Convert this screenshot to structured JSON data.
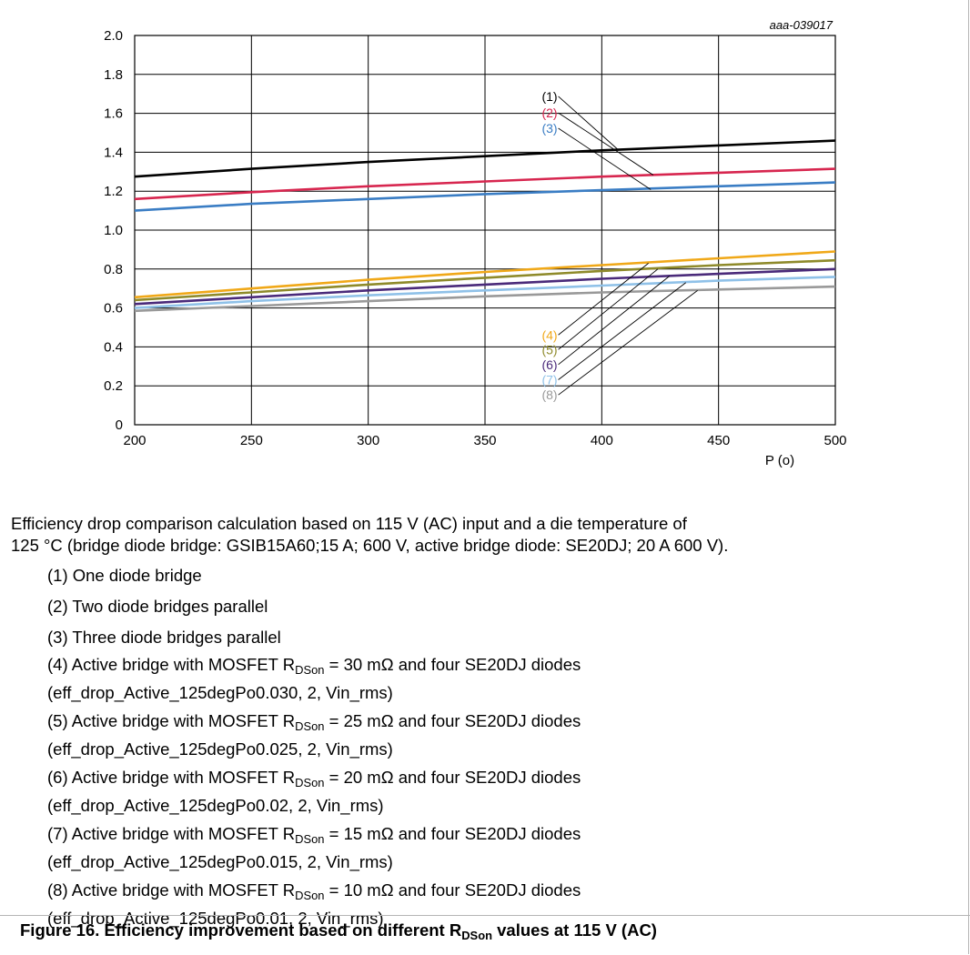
{
  "chart_data": {
    "type": "line",
    "figure_id": "aaa-039017",
    "xlabel": "P (o)",
    "ylabel": "",
    "xlim": [
      200,
      500
    ],
    "ylim": [
      0,
      2.0
    ],
    "x_ticks": [
      "200",
      "250",
      "300",
      "350",
      "400",
      "450",
      "500"
    ],
    "y_ticks": [
      "0",
      "0.2",
      "0.4",
      "0.6",
      "0.8",
      "1.0",
      "1.2",
      "1.4",
      "1.6",
      "1.8",
      "2.0"
    ],
    "x_tick_values": [
      200,
      250,
      300,
      350,
      400,
      450,
      500
    ],
    "y_tick_values": [
      0,
      0.2,
      0.4,
      0.6,
      0.8,
      1.0,
      1.2,
      1.4,
      1.6,
      1.8,
      2.0
    ],
    "grid": true,
    "series": [
      {
        "name": "(1)",
        "color": "#000000",
        "x": [
          200,
          250,
          300,
          350,
          400,
          450,
          500
        ],
        "y": [
          1.275,
          1.315,
          1.35,
          1.38,
          1.41,
          1.435,
          1.46
        ]
      },
      {
        "name": "(2)",
        "color": "#d7264f",
        "x": [
          200,
          250,
          300,
          350,
          400,
          450,
          500
        ],
        "y": [
          1.16,
          1.195,
          1.225,
          1.25,
          1.275,
          1.295,
          1.315
        ]
      },
      {
        "name": "(3)",
        "color": "#3a7dc4",
        "x": [
          200,
          250,
          300,
          350,
          400,
          450,
          500
        ],
        "y": [
          1.1,
          1.135,
          1.16,
          1.185,
          1.205,
          1.225,
          1.245
        ]
      },
      {
        "name": "(4)",
        "color": "#f0a818",
        "x": [
          200,
          250,
          300,
          350,
          400,
          450,
          500
        ],
        "y": [
          0.655,
          0.7,
          0.745,
          0.785,
          0.82,
          0.855,
          0.89
        ]
      },
      {
        "name": "(5)",
        "color": "#8e8a2a",
        "x": [
          200,
          250,
          300,
          350,
          400,
          450,
          500
        ],
        "y": [
          0.64,
          0.68,
          0.72,
          0.755,
          0.79,
          0.82,
          0.845
        ]
      },
      {
        "name": "(6)",
        "color": "#4a2a7a",
        "x": [
          200,
          250,
          300,
          350,
          400,
          450,
          500
        ],
        "y": [
          0.62,
          0.655,
          0.69,
          0.72,
          0.75,
          0.775,
          0.8
        ]
      },
      {
        "name": "(7)",
        "color": "#8fc1e8",
        "x": [
          200,
          250,
          300,
          350,
          400,
          450,
          500
        ],
        "y": [
          0.6,
          0.635,
          0.665,
          0.69,
          0.715,
          0.74,
          0.76
        ]
      },
      {
        "name": "(8)",
        "color": "#999999",
        "x": [
          200,
          250,
          300,
          350,
          400,
          450,
          500
        ],
        "y": [
          0.585,
          0.61,
          0.635,
          0.66,
          0.68,
          0.695,
          0.71
        ]
      }
    ],
    "labels": [
      {
        "text": "(1)",
        "color": "#000000",
        "at": [
          381,
          1.664
        ],
        "ref": [
          407,
          1.413
        ]
      },
      {
        "text": "(2)",
        "color": "#d7264f",
        "at": [
          381,
          1.579
        ],
        "ref": [
          422,
          1.283
        ]
      },
      {
        "text": "(3)",
        "color": "#3a7dc4",
        "at": [
          381,
          1.5
        ],
        "ref": [
          421,
          1.208
        ]
      },
      {
        "text": "(4)",
        "color": "#f0a818",
        "at": [
          381,
          0.438
        ],
        "ref": [
          420,
          0.83
        ]
      },
      {
        "text": "(5)",
        "color": "#8e8a2a",
        "at": [
          381,
          0.363
        ],
        "ref": [
          424,
          0.8
        ]
      },
      {
        "text": "(6)",
        "color": "#4a2a7a",
        "at": [
          381,
          0.286
        ],
        "ref": [
          429,
          0.764
        ]
      },
      {
        "text": "(7)",
        "color": "#8fc1e8",
        "at": [
          381,
          0.208
        ],
        "ref": [
          436,
          0.73
        ]
      },
      {
        "text": "(8)",
        "color": "#999999",
        "at": [
          381,
          0.13
        ],
        "ref": [
          441,
          0.69
        ]
      }
    ]
  },
  "description": {
    "line1": "Efficiency drop comparison calculation based on 115 V (AC) input and a die temperature of",
    "line2": "125 °C (bridge diode bridge: GSIB15A60;15 A; 600 V, active bridge diode: SE20DJ; 20 A 600 V)."
  },
  "notes": {
    "n1": "(1) One diode bridge",
    "n2": "(2) Two diode bridges parallel",
    "n3": "(3) Three diode bridges parallel",
    "mosfet_prefix": "Active bridge with MOSFET R",
    "rds_sub": "DSon",
    "diodes_suffix": "and four SE20DJ diodes",
    "n4_num": "(4)",
    "n4_val": "= 30 mΩ",
    "n4_ref": "(eff_drop_Active_125degPo0.030, 2, Vin_rms)",
    "n5_num": "(5)",
    "n5_val": "= 25 mΩ",
    "n5_ref": "(eff_drop_Active_125degPo0.025, 2, Vin_rms)",
    "n6_num": "(6)",
    "n6_val": "= 20 mΩ",
    "n6_ref": "(eff_drop_Active_125degPo0.02, 2, Vin_rms)",
    "n7_num": "(7)",
    "n7_val": "= 15 mΩ",
    "n7_ref": "(eff_drop_Active_125degPo0.015, 2, Vin_rms)",
    "n8_num": "(8)",
    "n8_val": "= 10 mΩ",
    "n8_ref": "(eff_drop_Active_125degPo0.01, 2, Vin_rms)"
  },
  "caption": {
    "prefix": "Figure 16.  Efficiency improvement based on different R",
    "sub": "DSon",
    "suffix": " values at 115 V (AC)"
  }
}
